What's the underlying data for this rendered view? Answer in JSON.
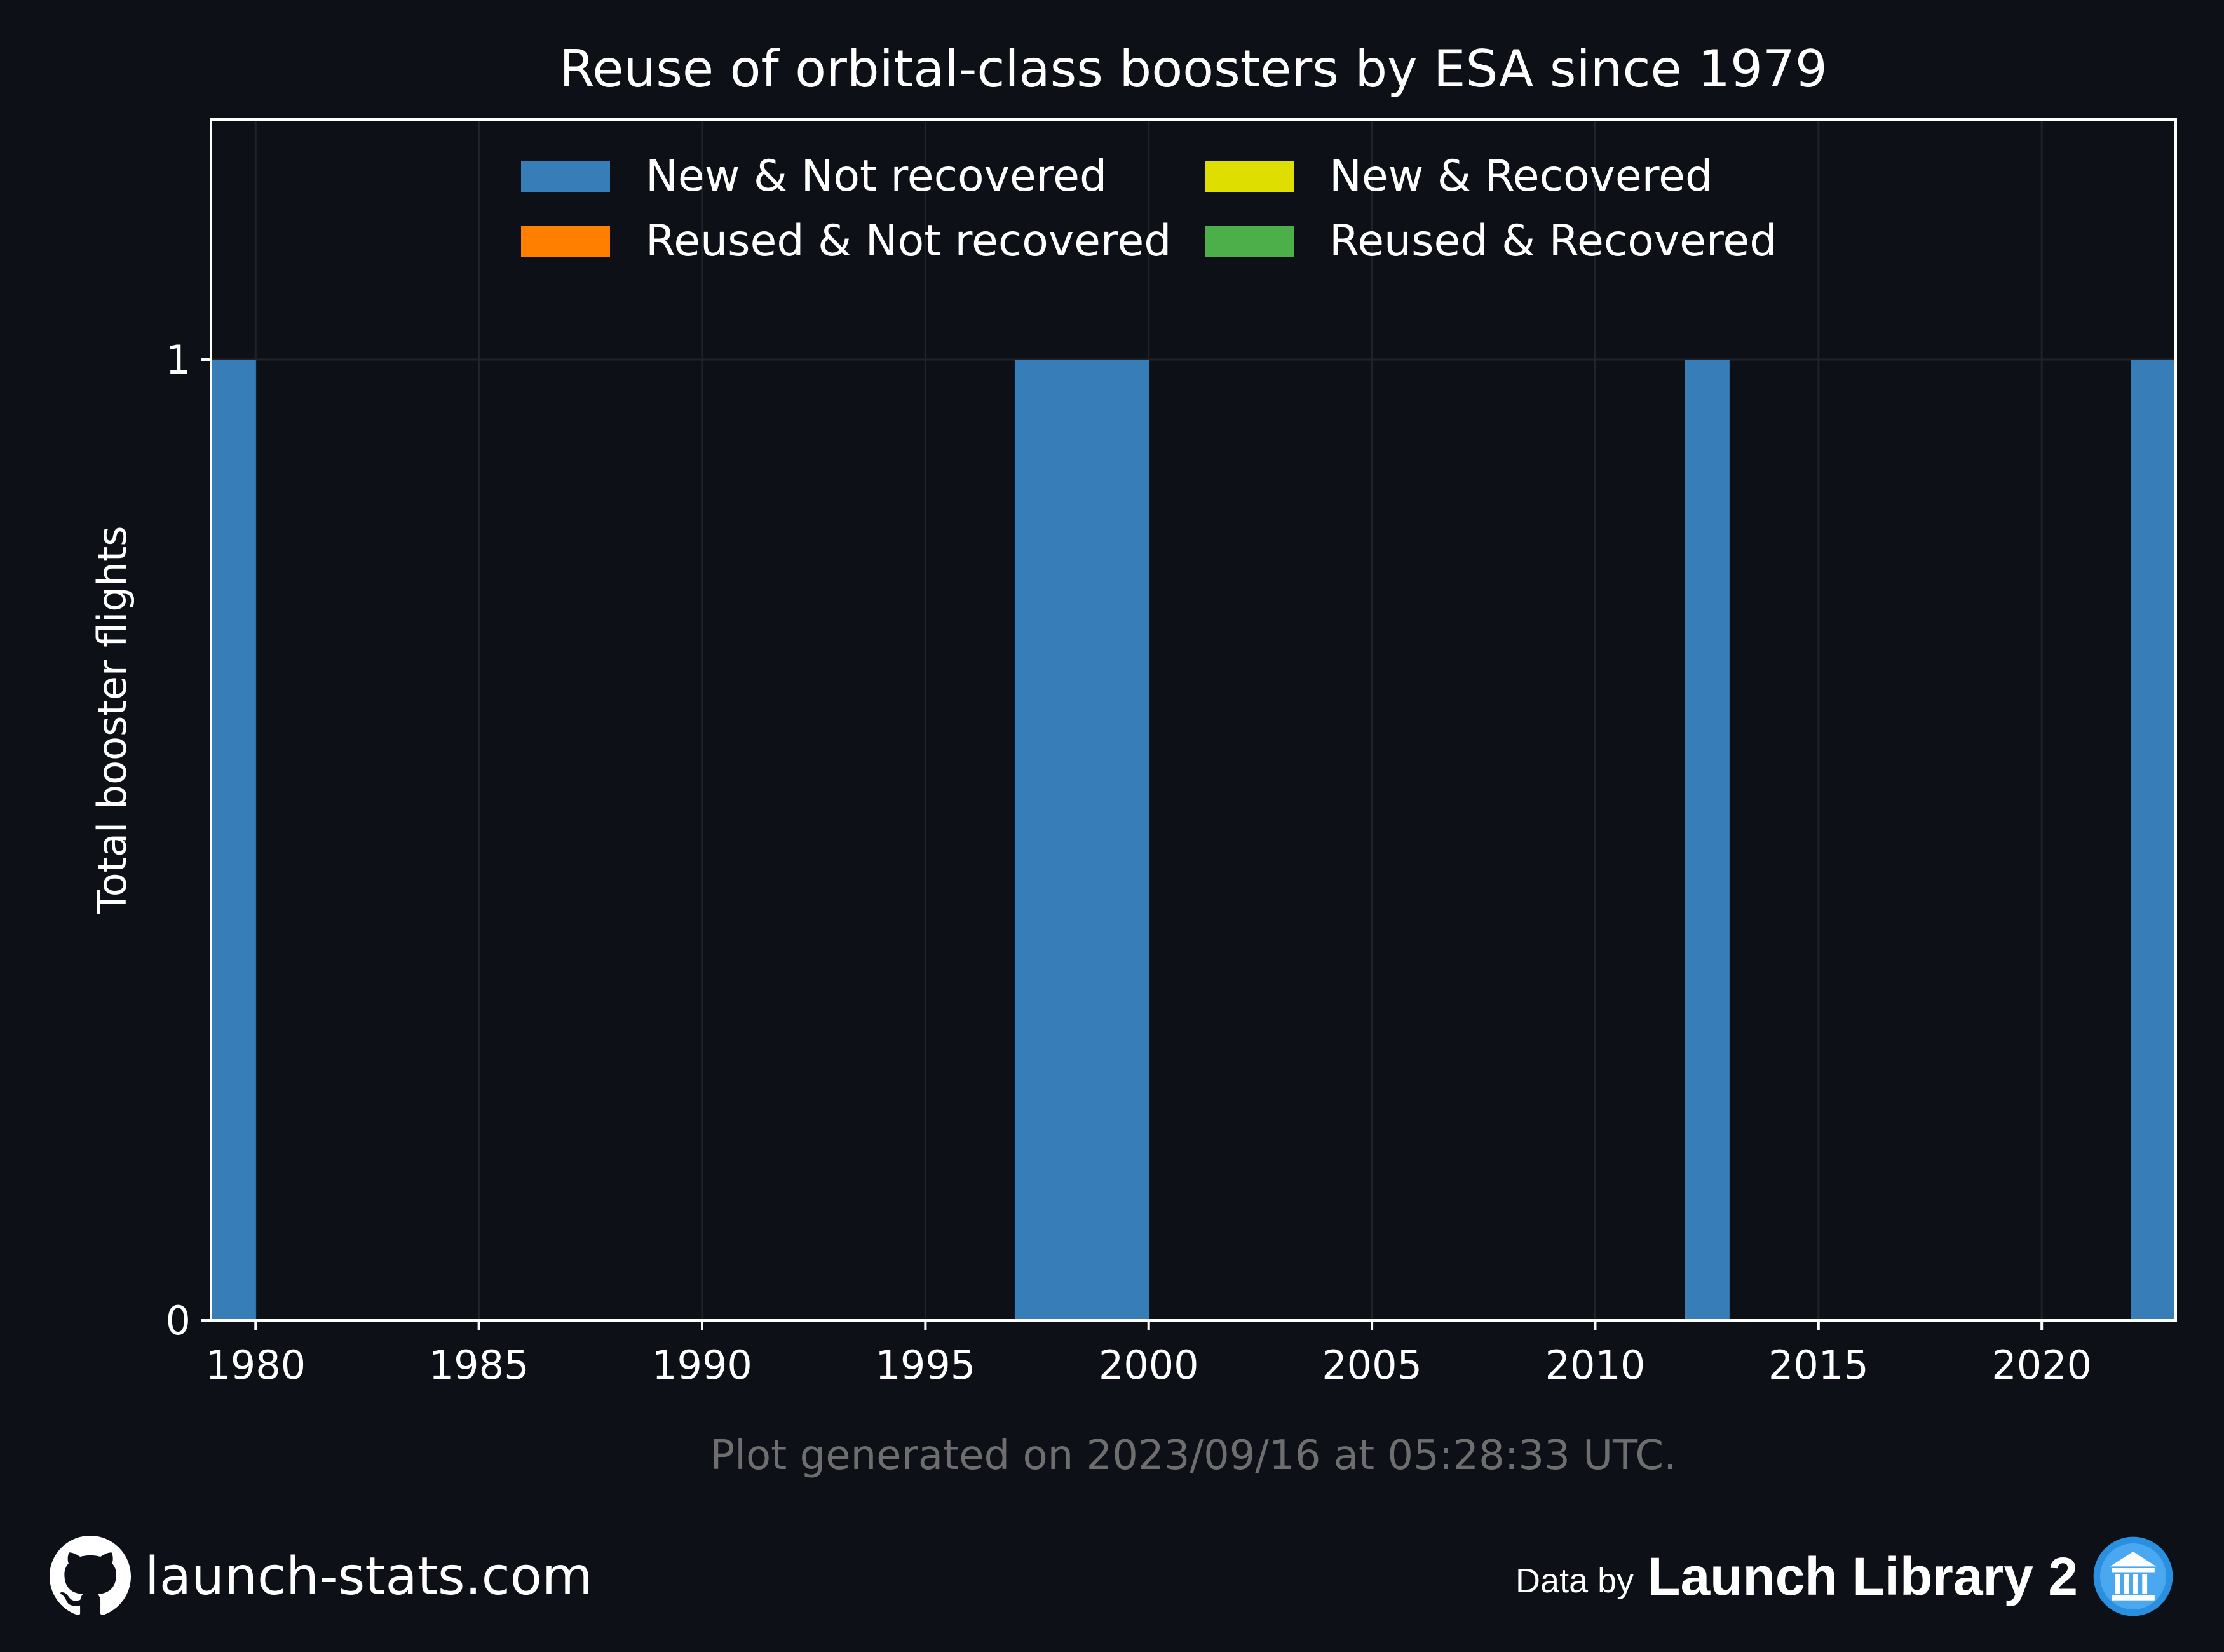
{
  "chart_data": {
    "type": "bar",
    "stacked": true,
    "title": "Reuse of orbital-class boosters by ESA since 1979",
    "xlabel": "",
    "ylabel": "Total booster flights",
    "xlim": [
      1979,
      2023
    ],
    "ylim": [
      0,
      1.25
    ],
    "xticks": [
      1980,
      1985,
      1990,
      1995,
      2000,
      2005,
      2010,
      2015,
      2020
    ],
    "yticks": [
      0,
      1
    ],
    "grid": true,
    "legend_position": "top",
    "bar_width_years": 1,
    "series": [
      {
        "name": "New & Not recovered",
        "color": "#377eb8",
        "points": [
          {
            "year": 1979,
            "value": 1
          },
          {
            "year": 1997,
            "value": 1
          },
          {
            "year": 1998,
            "value": 1
          },
          {
            "year": 1999,
            "value": 1
          },
          {
            "year": 2012,
            "value": 1
          },
          {
            "year": 2022,
            "value": 1
          }
        ]
      },
      {
        "name": "New & Recovered",
        "color": "#dede00",
        "points": []
      },
      {
        "name": "Reused & Not recovered",
        "color": "#ff7f00",
        "points": []
      },
      {
        "name": "Reused & Recovered",
        "color": "#4daf4a",
        "points": []
      }
    ],
    "legend_order": [
      0,
      2,
      1,
      3
    ]
  },
  "footer": {
    "generated_text": "Plot generated on 2023/09/16 at 05:28:33 UTC.",
    "site": "launch-stats.com",
    "data_by": "Data by",
    "source": "Launch Library 2"
  },
  "colors": {
    "background": "#0d1017",
    "text": "#ffffff",
    "muted_text": "#6e6e6e",
    "grid": "#1e232c"
  }
}
